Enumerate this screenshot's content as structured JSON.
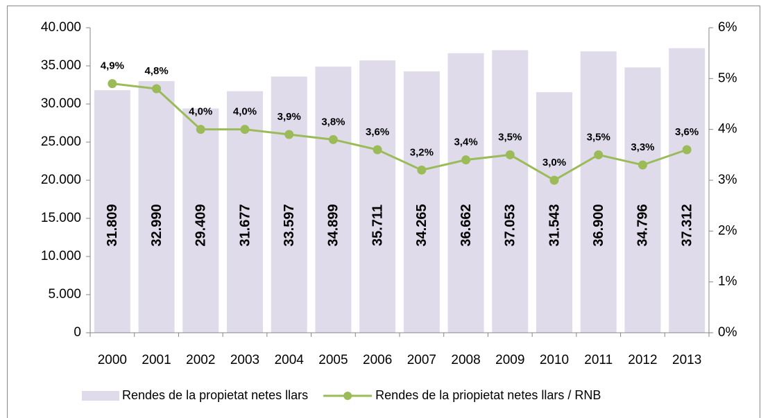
{
  "chart_data": {
    "type": "bar",
    "categories": [
      "2000",
      "2001",
      "2002",
      "2003",
      "2004",
      "2005",
      "2006",
      "2007",
      "2008",
      "2009",
      "2010",
      "2011",
      "2012",
      "2013"
    ],
    "series": [
      {
        "name": "Rendes de la propietat netes llars",
        "type": "bar",
        "color": "#dfdbea",
        "values": [
          31809,
          32990,
          29409,
          31677,
          33597,
          34899,
          35711,
          34265,
          36662,
          37053,
          31543,
          36900,
          34796,
          37312
        ],
        "value_labels": [
          "31.809",
          "32.990",
          "29.409",
          "31.677",
          "33.597",
          "34.899",
          "35.711",
          "34.265",
          "36.662",
          "37.053",
          "31.543",
          "36.900",
          "34.796",
          "37.312"
        ]
      },
      {
        "name": "Rendes de la priopietat netes llars / RNB",
        "type": "line",
        "axis": "y2",
        "color": "#9bbb59",
        "values": [
          4.9,
          4.8,
          4.0,
          4.0,
          3.9,
          3.8,
          3.6,
          3.2,
          3.4,
          3.5,
          3.0,
          3.5,
          3.3,
          3.6
        ],
        "value_labels": [
          "4,9%",
          "4,8%",
          "4,0%",
          "4,0%",
          "3,9%",
          "3,8%",
          "3,6%",
          "3,2%",
          "3,4%",
          "3,5%",
          "3,0%",
          "3,5%",
          "3,3%",
          "3,6%"
        ]
      }
    ],
    "ylim": [
      0,
      40000
    ],
    "yticks": [
      0,
      {
        "value": 5000,
        "label": "5.000"
      },
      {
        "value": 10000,
        "label": "10.000"
      },
      {
        "value": 15000,
        "label": "15.000"
      },
      {
        "value": 20000,
        "label": "20.000"
      },
      {
        "value": 25000,
        "label": "25.000"
      },
      {
        "value": 30000,
        "label": "30.000"
      },
      {
        "value": 35000,
        "label": "35.000"
      },
      {
        "value": 40000,
        "label": "40.000"
      }
    ],
    "y2lim": [
      0,
      6
    ],
    "y2ticks": [
      {
        "value": 0,
        "label": "0%"
      },
      {
        "value": 1,
        "label": "1%"
      },
      {
        "value": 2,
        "label": "2%"
      },
      {
        "value": 3,
        "label": "3%"
      },
      {
        "value": 4,
        "label": "4%"
      },
      {
        "value": 5,
        "label": "5%"
      },
      {
        "value": 6,
        "label": "6%"
      }
    ],
    "legend": "bottom"
  }
}
